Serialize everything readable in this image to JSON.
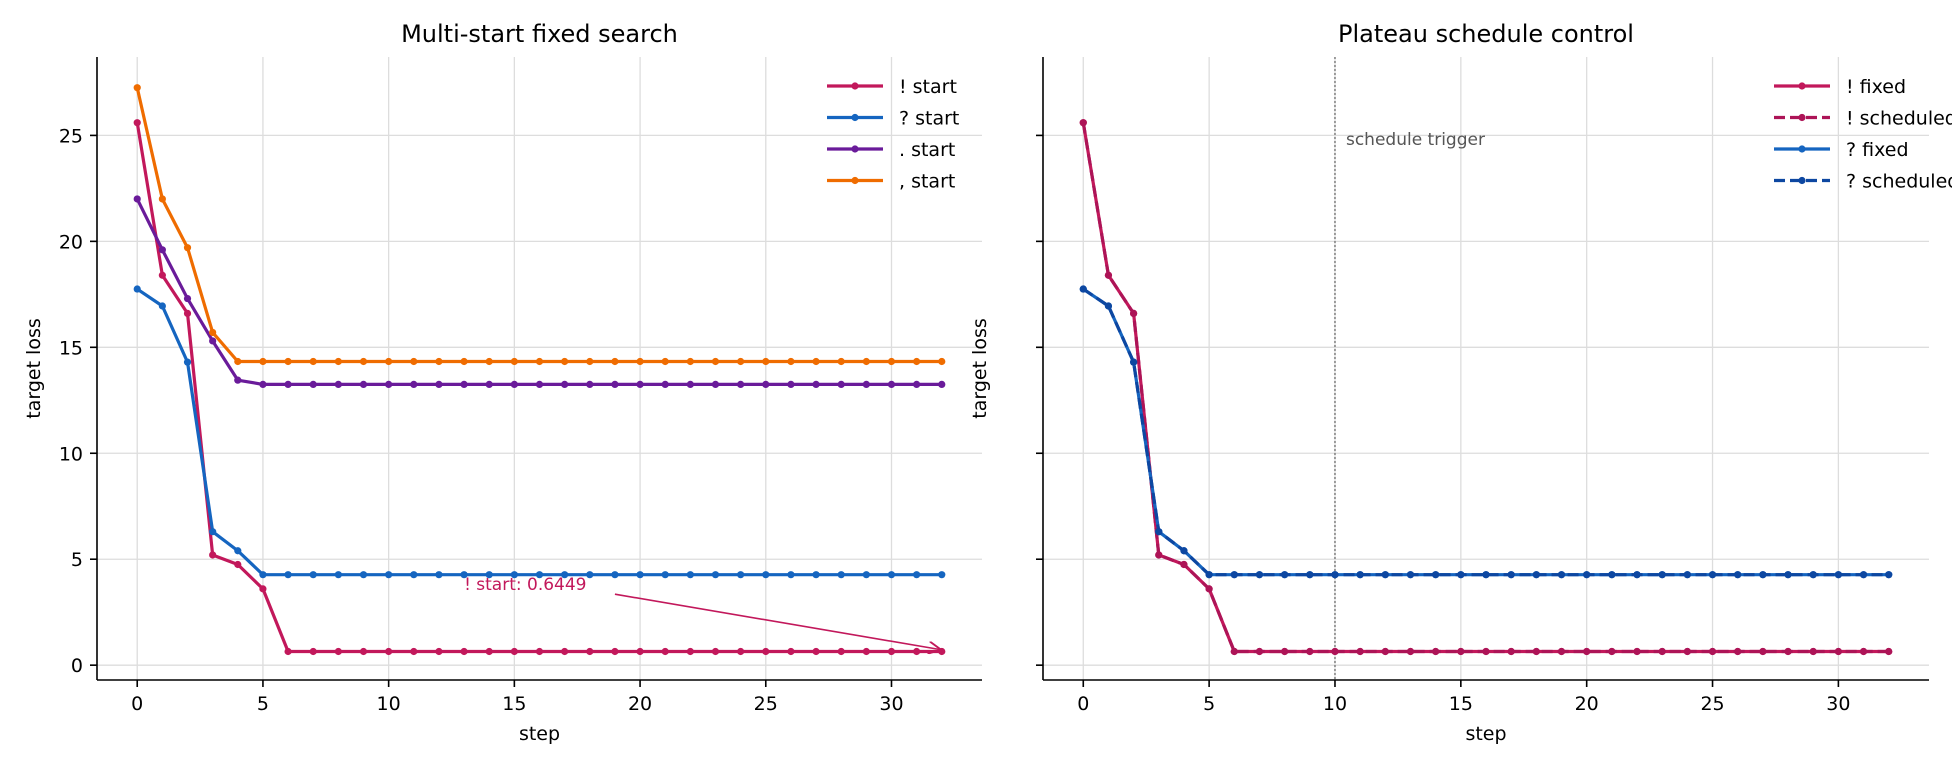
{
  "chart_data": [
    {
      "type": "line",
      "title": "Multi-start fixed search",
      "xlabel": "step",
      "ylabel": "target loss",
      "xlim": [
        -1.6,
        33.6
      ],
      "ylim": [
        -0.7,
        28.7
      ],
      "xticks": [
        0,
        5,
        10,
        15,
        20,
        25,
        30
      ],
      "yticks": [
        0,
        5,
        10,
        15,
        20,
        25
      ],
      "grid": true,
      "legend": "top-right",
      "series": [
        {
          "name": "! start",
          "color": "#c2185b",
          "dash": false,
          "values": [
            25.6,
            18.4,
            16.6,
            5.2,
            4.75,
            3.6,
            0.6449,
            0.6449,
            0.6449,
            0.6449,
            0.6449,
            0.6449,
            0.6449,
            0.6449,
            0.6449,
            0.6449,
            0.6449,
            0.6449,
            0.6449,
            0.6449,
            0.6449,
            0.6449,
            0.6449,
            0.6449,
            0.6449,
            0.6449,
            0.6449,
            0.6449,
            0.6449,
            0.6449,
            0.6449,
            0.6449,
            0.6449
          ]
        },
        {
          "name": "? start",
          "color": "#1565c0",
          "dash": false,
          "values": [
            17.75,
            16.95,
            14.3,
            6.3,
            5.4,
            4.27,
            4.27,
            4.27,
            4.27,
            4.27,
            4.27,
            4.27,
            4.27,
            4.27,
            4.27,
            4.27,
            4.27,
            4.27,
            4.27,
            4.27,
            4.27,
            4.27,
            4.27,
            4.27,
            4.27,
            4.27,
            4.27,
            4.27,
            4.27,
            4.27,
            4.27,
            4.27,
            4.27
          ]
        },
        {
          "name": ". start",
          "color": "#6a1b9a",
          "dash": false,
          "values": [
            22.0,
            19.6,
            17.3,
            15.3,
            13.45,
            13.25,
            13.25,
            13.25,
            13.25,
            13.25,
            13.25,
            13.25,
            13.25,
            13.25,
            13.25,
            13.25,
            13.25,
            13.25,
            13.25,
            13.25,
            13.25,
            13.25,
            13.25,
            13.25,
            13.25,
            13.25,
            13.25,
            13.25,
            13.25,
            13.25,
            13.25,
            13.25,
            13.25
          ]
        },
        {
          "name": ", start",
          "color": "#ef6c00",
          "dash": false,
          "values": [
            27.25,
            22.0,
            19.7,
            15.7,
            14.33,
            14.33,
            14.33,
            14.33,
            14.33,
            14.33,
            14.33,
            14.33,
            14.33,
            14.33,
            14.33,
            14.33,
            14.33,
            14.33,
            14.33,
            14.33,
            14.33,
            14.33,
            14.33,
            14.33,
            14.33,
            14.33,
            14.33,
            14.33,
            14.33,
            14.33,
            14.33,
            14.33,
            14.33
          ]
        }
      ],
      "annotations": [
        {
          "text": "! start: 0.6449",
          "x": 13.0,
          "y": 3.55,
          "arrow_to": [
            32,
            0.6449
          ],
          "color": "#c2185b"
        }
      ]
    },
    {
      "type": "line",
      "title": "Plateau schedule control",
      "xlabel": "step",
      "ylabel": "target loss",
      "xlim": [
        -1.6,
        33.6
      ],
      "ylim": [
        -0.7,
        28.7
      ],
      "xticks": [
        0,
        5,
        10,
        15,
        20,
        25,
        30
      ],
      "yticks": [
        0,
        5,
        10,
        15,
        20,
        25
      ],
      "grid": true,
      "legend": "top-right",
      "vline": {
        "x": 10,
        "label": "schedule trigger"
      },
      "series": [
        {
          "name": "! fixed",
          "color": "#c2185b",
          "dash": false,
          "values": [
            25.6,
            18.4,
            16.6,
            5.2,
            4.75,
            3.6,
            0.6449,
            0.6449,
            0.6449,
            0.6449,
            0.6449,
            0.6449,
            0.6449,
            0.6449,
            0.6449,
            0.6449,
            0.6449,
            0.6449,
            0.6449,
            0.6449,
            0.6449,
            0.6449,
            0.6449,
            0.6449,
            0.6449,
            0.6449,
            0.6449,
            0.6449,
            0.6449,
            0.6449,
            0.6449,
            0.6449,
            0.6449
          ]
        },
        {
          "name": "! scheduled",
          "color": "#ad1457",
          "dash": true,
          "values": [
            25.6,
            18.4,
            16.6,
            5.2,
            4.75,
            3.6,
            0.6449,
            0.6449,
            0.6449,
            0.6449,
            0.6449,
            0.6449,
            0.6449,
            0.6449,
            0.6449,
            0.6449,
            0.6449,
            0.6449,
            0.6449,
            0.6449,
            0.6449,
            0.6449,
            0.6449,
            0.6449,
            0.6449,
            0.6449,
            0.6449,
            0.6449,
            0.6449,
            0.6449,
            0.6449,
            0.6449,
            0.6449
          ]
        },
        {
          "name": "? fixed",
          "color": "#1565c0",
          "dash": false,
          "values": [
            17.75,
            16.95,
            14.3,
            6.3,
            5.4,
            4.27,
            4.27,
            4.27,
            4.27,
            4.27,
            4.27,
            4.27,
            4.27,
            4.27,
            4.27,
            4.27,
            4.27,
            4.27,
            4.27,
            4.27,
            4.27,
            4.27,
            4.27,
            4.27,
            4.27,
            4.27,
            4.27,
            4.27,
            4.27,
            4.27,
            4.27,
            4.27,
            4.27
          ]
        },
        {
          "name": "? scheduled",
          "color": "#0d47a1",
          "dash": true,
          "values": [
            17.75,
            16.95,
            14.3,
            6.3,
            5.4,
            4.27,
            4.27,
            4.27,
            4.27,
            4.27,
            4.27,
            4.27,
            4.27,
            4.27,
            4.27,
            4.27,
            4.27,
            4.27,
            4.27,
            4.27,
            4.27,
            4.27,
            4.27,
            4.27,
            4.27,
            4.27,
            4.27,
            4.27,
            4.27,
            4.27,
            4.27,
            4.27,
            4.27
          ]
        }
      ]
    }
  ]
}
